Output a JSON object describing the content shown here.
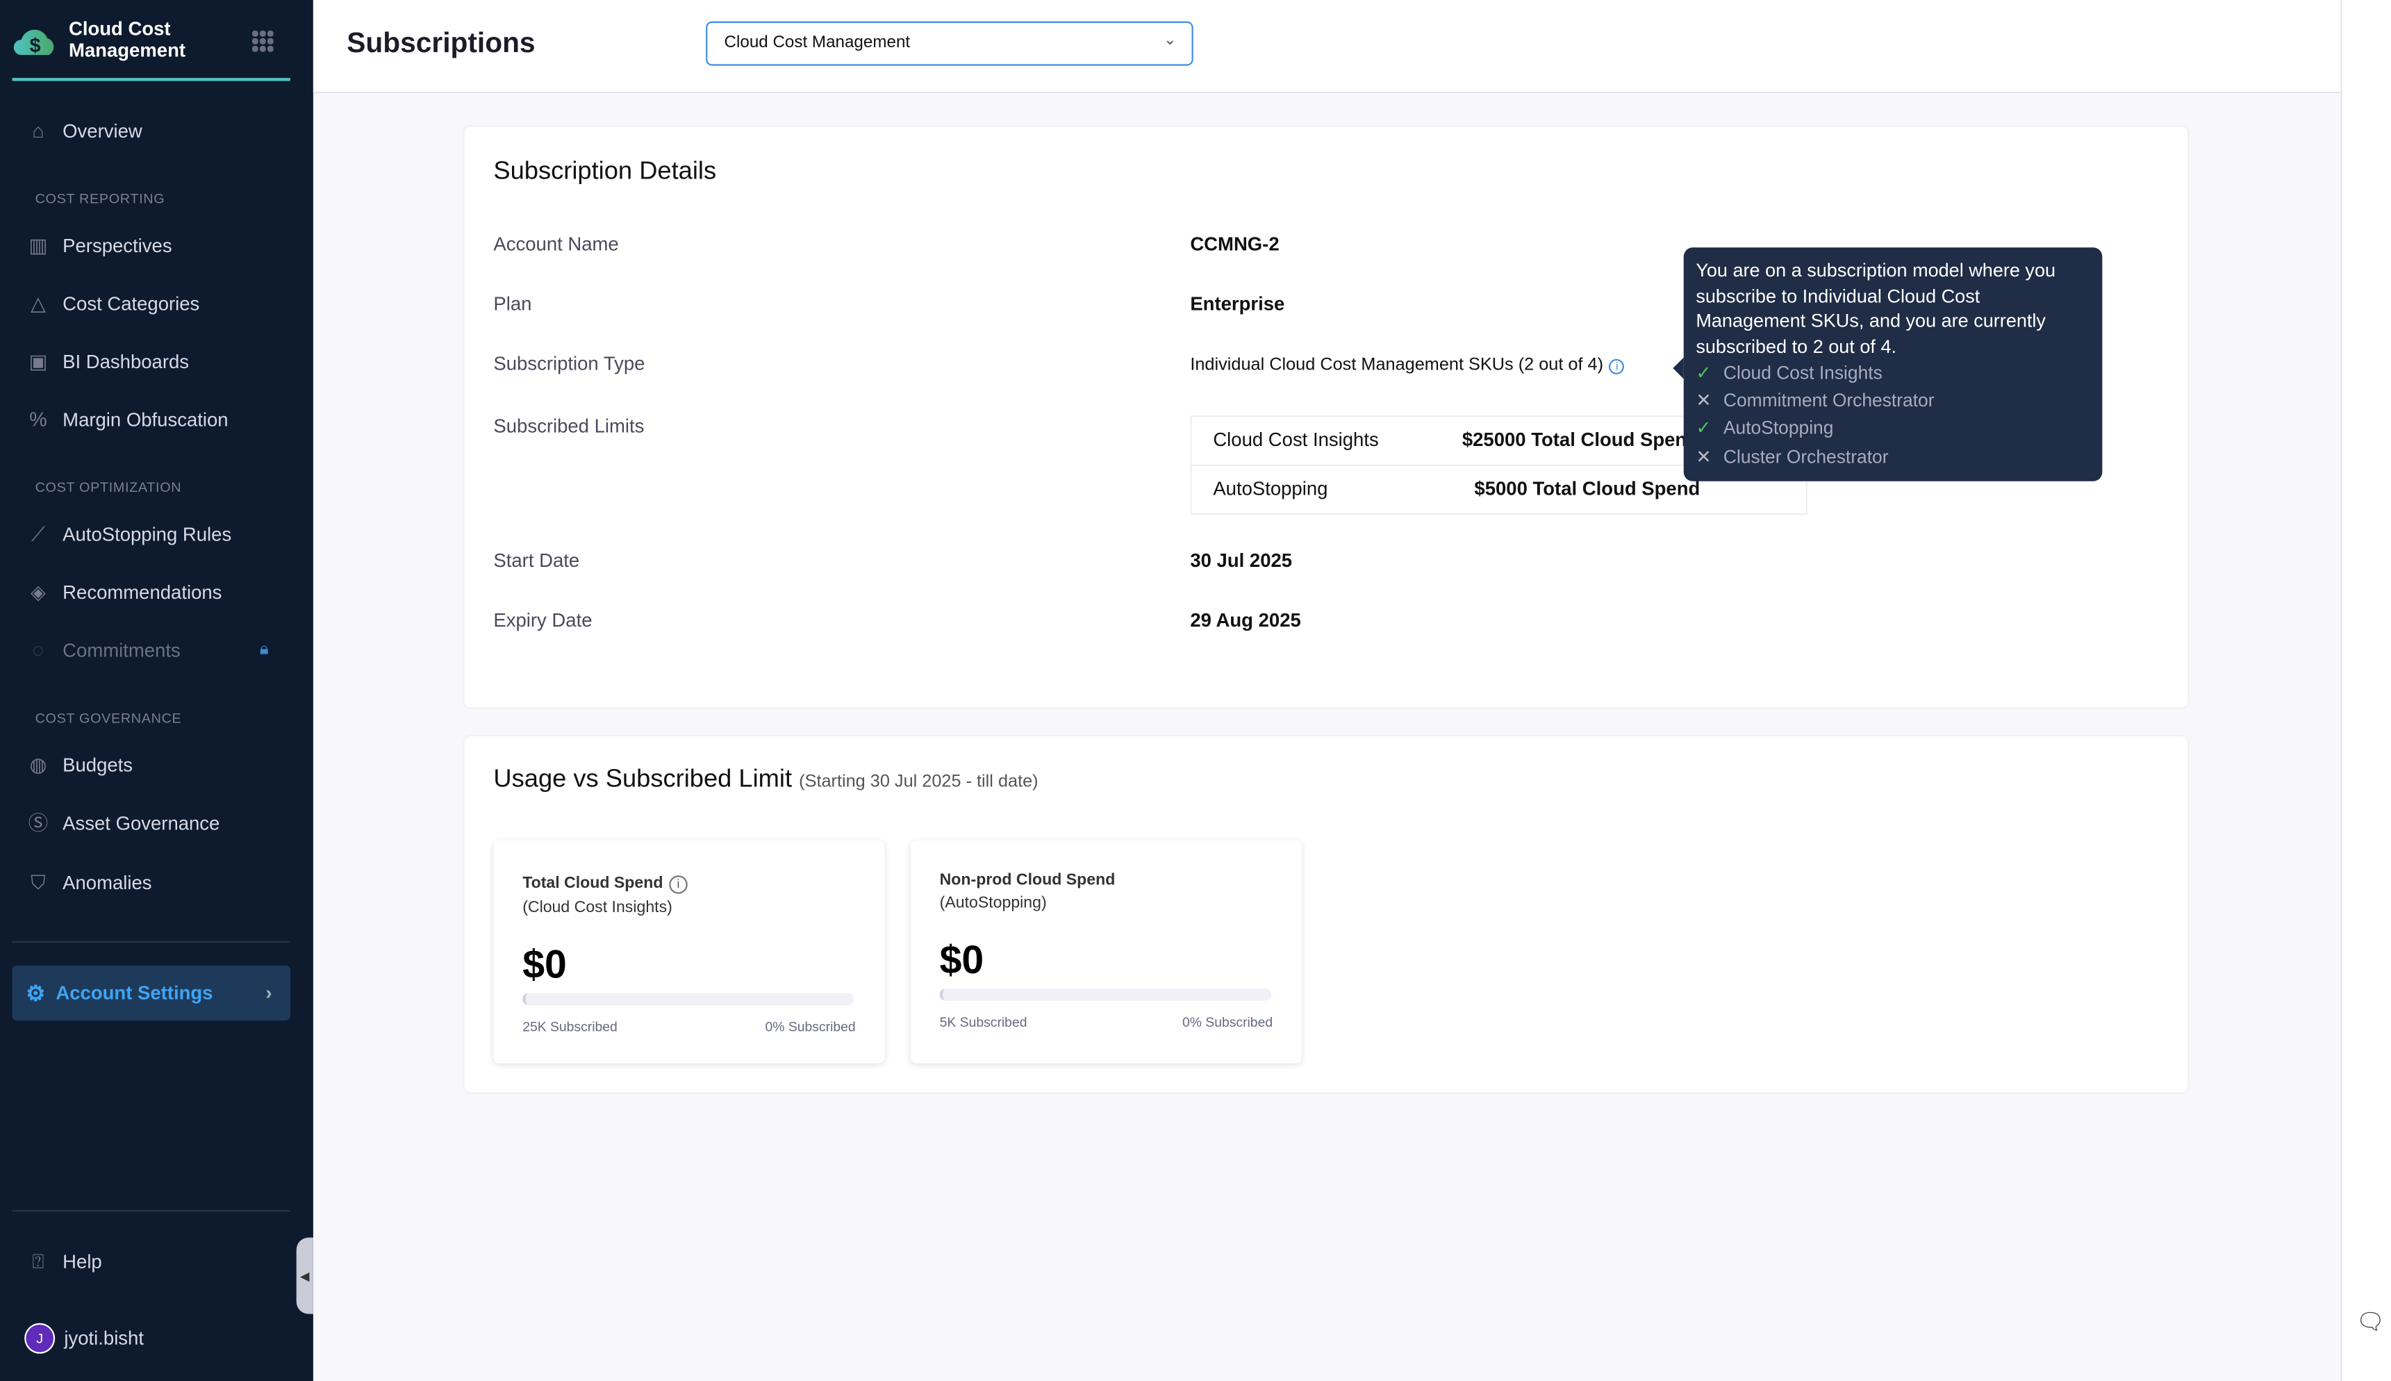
{
  "app": {
    "title": "Cloud Cost Management"
  },
  "sidebar": {
    "overview": "Overview",
    "sections": [
      "COST REPORTING",
      "COST OPTIMIZATION",
      "COST GOVERNANCE"
    ],
    "items": [
      "Perspectives",
      "Cost Categories",
      "BI Dashboards",
      "Margin Obfuscation",
      "AutoStopping Rules",
      "Recommendations",
      "Commitments",
      "Budgets",
      "Asset Governance",
      "Anomalies"
    ],
    "account_settings": "Account Settings",
    "help": "Help",
    "user": {
      "initial": "J",
      "name": "jyoti.bisht"
    }
  },
  "header": {
    "title": "Subscriptions",
    "module_select": "Cloud Cost Management"
  },
  "details": {
    "title": "Subscription Details",
    "account_name_label": "Account Name",
    "account_name": "CCMNG-2",
    "plan_label": "Plan",
    "plan": "Enterprise",
    "type_label": "Subscription Type",
    "type": "Individual Cloud Cost Management SKUs (2 out of 4)",
    "limits_label": "Subscribed Limits",
    "limits": [
      {
        "name": "Cloud Cost Insights",
        "value": "$25000 Total Cloud Spend"
      },
      {
        "name": "AutoStopping",
        "value": "$5000 Total Cloud Spend"
      }
    ],
    "start_label": "Start Date",
    "start": "30 Jul 2025",
    "expiry_label": "Expiry Date",
    "expiry": "29 Aug 2025"
  },
  "tooltip": {
    "text": "You are on a subscription model where you subscribe to Individual Cloud Cost Management SKUs, and you are currently subscribed to 2 out of 4.",
    "items": [
      {
        "label": "Cloud Cost Insights",
        "subscribed": true
      },
      {
        "label": "Commitment Orchestrator",
        "subscribed": false
      },
      {
        "label": "AutoStopping",
        "subscribed": true
      },
      {
        "label": "Cluster Orchestrator",
        "subscribed": false
      }
    ]
  },
  "usage": {
    "title": "Usage vs Subscribed Limit",
    "subtitle": "(Starting 30 Jul 2025 - till date)",
    "cards": [
      {
        "title": "Total Cloud Spend",
        "sub": "(Cloud Cost Insights)",
        "amount": "$0",
        "subscribed": "25K Subscribed",
        "percent_label": "0% Subscribed",
        "percent": 0
      },
      {
        "title": "Non-prod Cloud Spend",
        "sub": "(AutoStopping)",
        "amount": "$0",
        "subscribed": "5K Subscribed",
        "percent_label": "0% Subscribed",
        "percent": 0
      }
    ]
  },
  "colors": {
    "sidebar": "#0e1a2d",
    "accent": "#3d8fe0",
    "tooltip": "#1f2d46",
    "check": "#4dc35b"
  }
}
